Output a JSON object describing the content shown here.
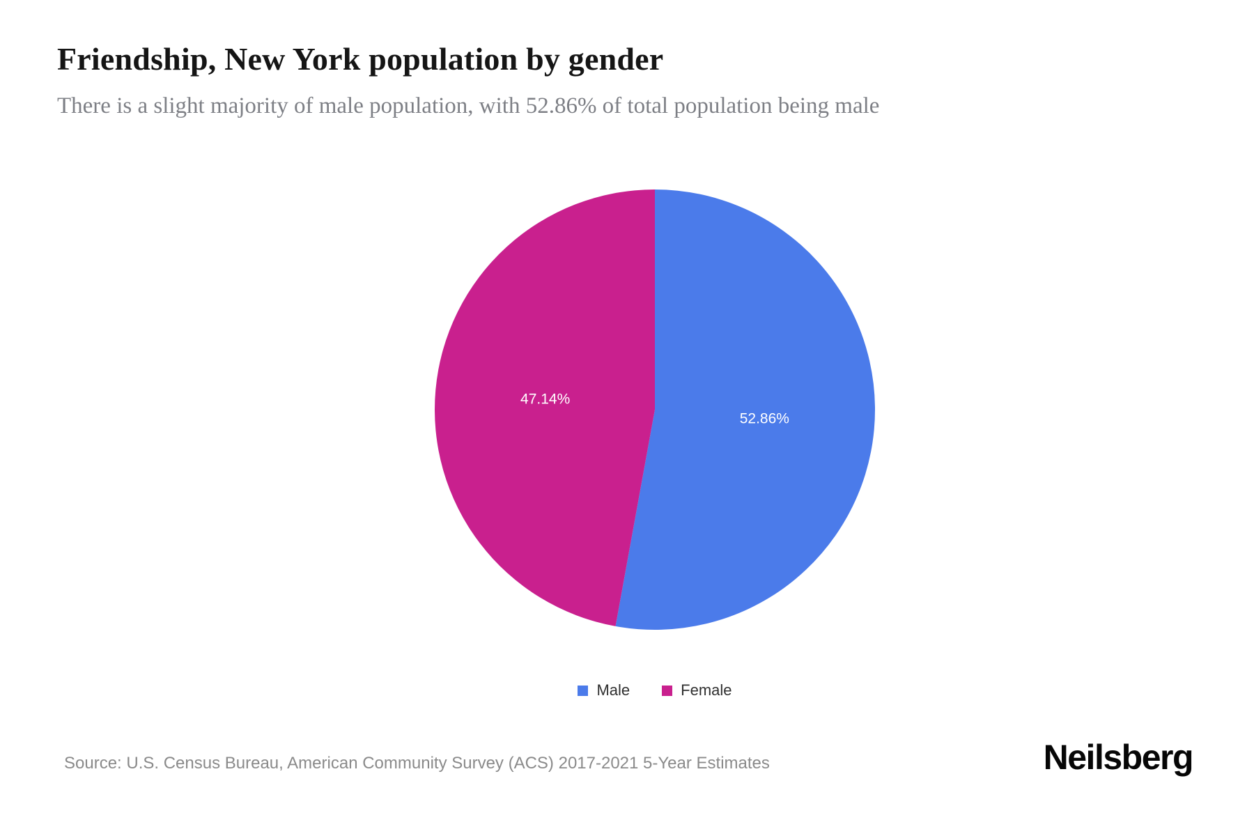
{
  "header": {
    "title": "Friendship, New York population by gender",
    "subtitle": "There is a slight majority of male population, with 52.86% of total population being male"
  },
  "chart_data": {
    "type": "pie",
    "title": "Friendship, New York population by gender",
    "labels": [
      "Male",
      "Female"
    ],
    "values": [
      52.86,
      47.14
    ],
    "value_labels": [
      "52.86%",
      "47.14%"
    ],
    "colors": [
      "#4b7bea",
      "#c9208e"
    ],
    "slice_label_color": "#ffffff",
    "start_angle_deg": 0,
    "direction": "clockwise",
    "legend_position": "bottom"
  },
  "legend": {
    "items": [
      {
        "label": "Male",
        "color": "#4b7bea"
      },
      {
        "label": "Female",
        "color": "#c9208e"
      }
    ]
  },
  "footer": {
    "source": "Source: U.S. Census Bureau, American Community Survey (ACS) 2017-2021 5-Year Estimates",
    "brand": "Neilsberg"
  }
}
